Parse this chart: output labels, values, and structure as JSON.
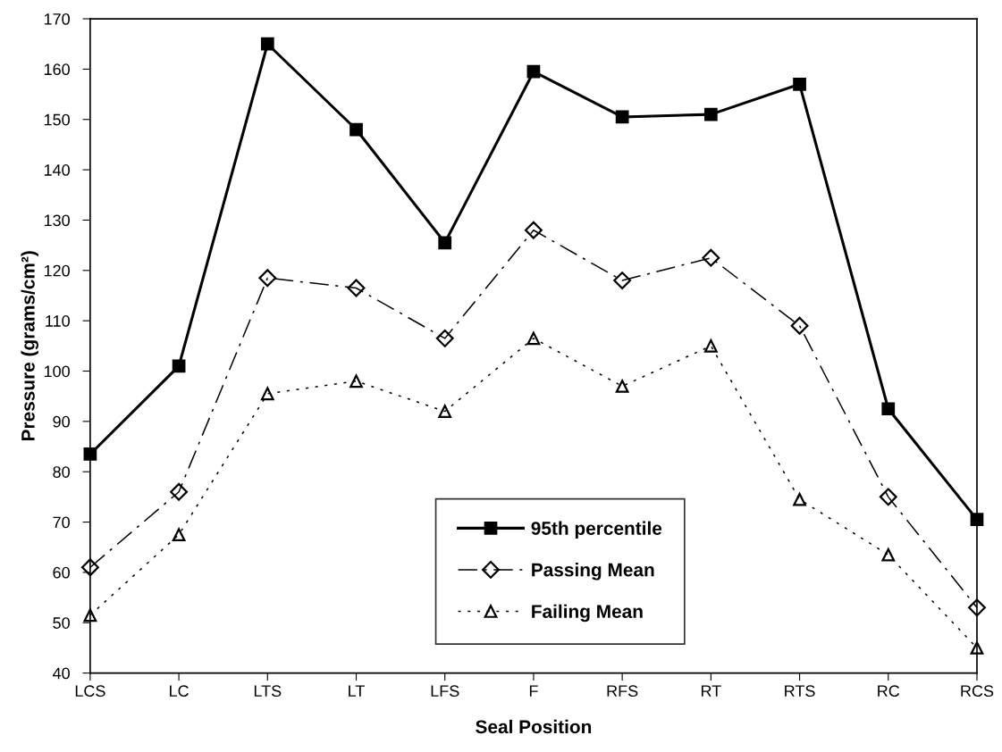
{
  "chart_data": {
    "type": "line",
    "xlabel": "Seal Position",
    "ylabel": "Pressure (grams/cm²)",
    "categories": [
      "LCS",
      "LC",
      "LTS",
      "LT",
      "LFS",
      "F",
      "RFS",
      "RT",
      "RTS",
      "RC",
      "RCS"
    ],
    "series": [
      {
        "name": "95th percentile",
        "color": "#000000",
        "marker": "square",
        "line_style": "solid",
        "values": [
          83.5,
          101,
          165,
          148,
          125.5,
          159.5,
          150.5,
          151,
          157,
          92.5,
          70.5
        ]
      },
      {
        "name": "Passing Mean",
        "color": "#000000",
        "marker": "diamond",
        "line_style": "dashed",
        "values": [
          61,
          76,
          118.5,
          116.5,
          106.5,
          128,
          118,
          122.5,
          109,
          75,
          53
        ]
      },
      {
        "name": "Failing Mean",
        "color": "#000000",
        "marker": "triangle",
        "line_style": "dotted",
        "values": [
          51.5,
          67.5,
          95.5,
          98,
          92,
          106.5,
          97,
          105,
          74.5,
          63.5,
          45
        ]
      }
    ],
    "ylim": [
      40,
      170
    ],
    "yticks": [
      40,
      50,
      60,
      70,
      80,
      90,
      100,
      110,
      120,
      130,
      140,
      150,
      160,
      170
    ],
    "grid": false,
    "legend": "bottom"
  }
}
